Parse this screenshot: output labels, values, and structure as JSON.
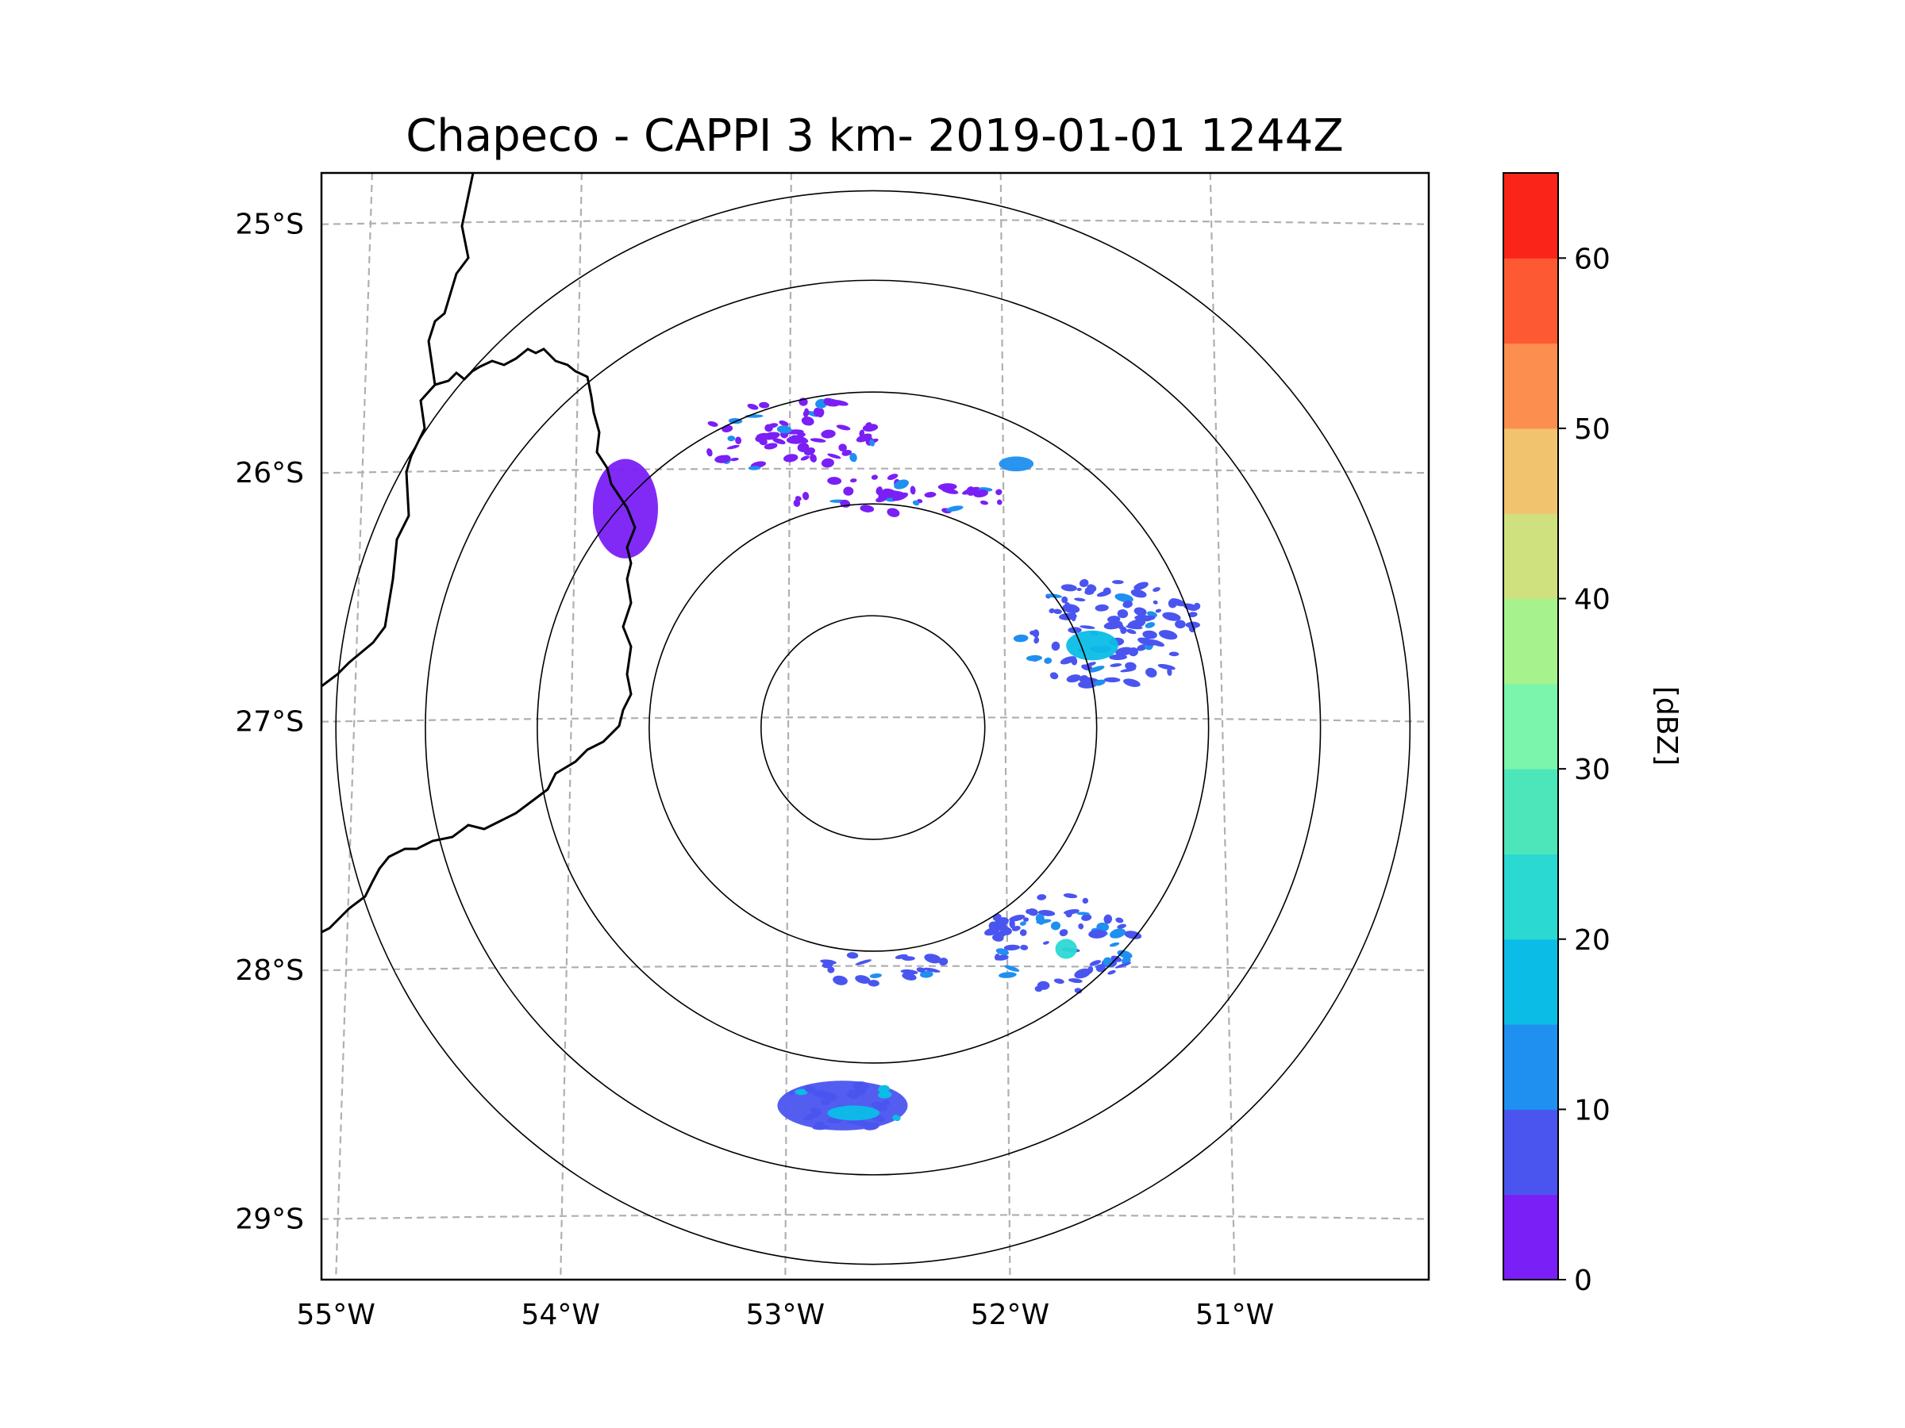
{
  "chart_data": {
    "type": "radar-map",
    "title": "Chapeco - CAPPI 3 km- 2019-01-01 1244Z",
    "xlabel": "",
    "ylabel": "",
    "lon_ticks": [
      -55,
      -54,
      -53,
      -52,
      -51
    ],
    "lon_tick_labels": [
      "55°W",
      "54°W",
      "53°W",
      "52°W",
      "51°W"
    ],
    "lat_ticks": [
      -25,
      -26,
      -27,
      -28,
      -29
    ],
    "lat_tick_labels": [
      "25°S",
      "26°S",
      "27°S",
      "28°S",
      "29°S"
    ],
    "lon_range": [
      -55.15,
      -50.05
    ],
    "lat_range": [
      -29.25,
      -24.8
    ],
    "grid": true,
    "radar_center": {
      "lon": -52.61,
      "lat": -27.03
    },
    "range_rings_km": [
      50,
      100,
      150,
      200,
      240
    ],
    "colorbar": {
      "label": "[dBZ]",
      "min": 0,
      "max": 65,
      "step": 5,
      "ticks": [
        0,
        10,
        20,
        30,
        40,
        50,
        60
      ],
      "tick_labels": [
        "0",
        "10",
        "20",
        "30",
        "40",
        "50",
        "60"
      ],
      "colors": [
        "#7a1ff5",
        "#4a55f0",
        "#1f8ff0",
        "#0bbde6",
        "#2ad9d2",
        "#4de6bb",
        "#7bf5ab",
        "#a6f28c",
        "#cfe07e",
        "#f2c36e",
        "#fc8e4f",
        "#fd5a33",
        "#fb2418"
      ]
    },
    "echo_regions": [
      {
        "lon": -52.75,
        "lat": -28.55,
        "rx": 0.3,
        "ry": 0.1,
        "dbz": 8
      },
      {
        "lon": -52.7,
        "lat": -28.58,
        "rx": 0.12,
        "ry": 0.03,
        "dbz": 15
      },
      {
        "lon": -51.5,
        "lat": -26.65,
        "rx": 0.45,
        "ry": 0.22,
        "dbz": 5
      },
      {
        "lon": -51.6,
        "lat": -26.7,
        "rx": 0.12,
        "ry": 0.06,
        "dbz": 18
      },
      {
        "lon": -51.75,
        "lat": -27.9,
        "rx": 0.35,
        "ry": 0.2,
        "dbz": 5
      },
      {
        "lon": -51.72,
        "lat": -27.92,
        "rx": 0.05,
        "ry": 0.04,
        "dbz": 20
      },
      {
        "lon": -53.0,
        "lat": -25.85,
        "rx": 0.45,
        "ry": 0.15,
        "dbz": 3
      },
      {
        "lon": -52.5,
        "lat": -26.1,
        "rx": 0.5,
        "ry": 0.08,
        "dbz": 4
      },
      {
        "lon": -53.75,
        "lat": -26.15,
        "rx": 0.15,
        "ry": 0.2,
        "dbz": 3
      },
      {
        "lon": -52.55,
        "lat": -28.0,
        "rx": 0.3,
        "ry": 0.07,
        "dbz": 5
      },
      {
        "lon": -51.95,
        "lat": -25.97,
        "rx": 0.08,
        "ry": 0.03,
        "dbz": 12
      }
    ]
  }
}
